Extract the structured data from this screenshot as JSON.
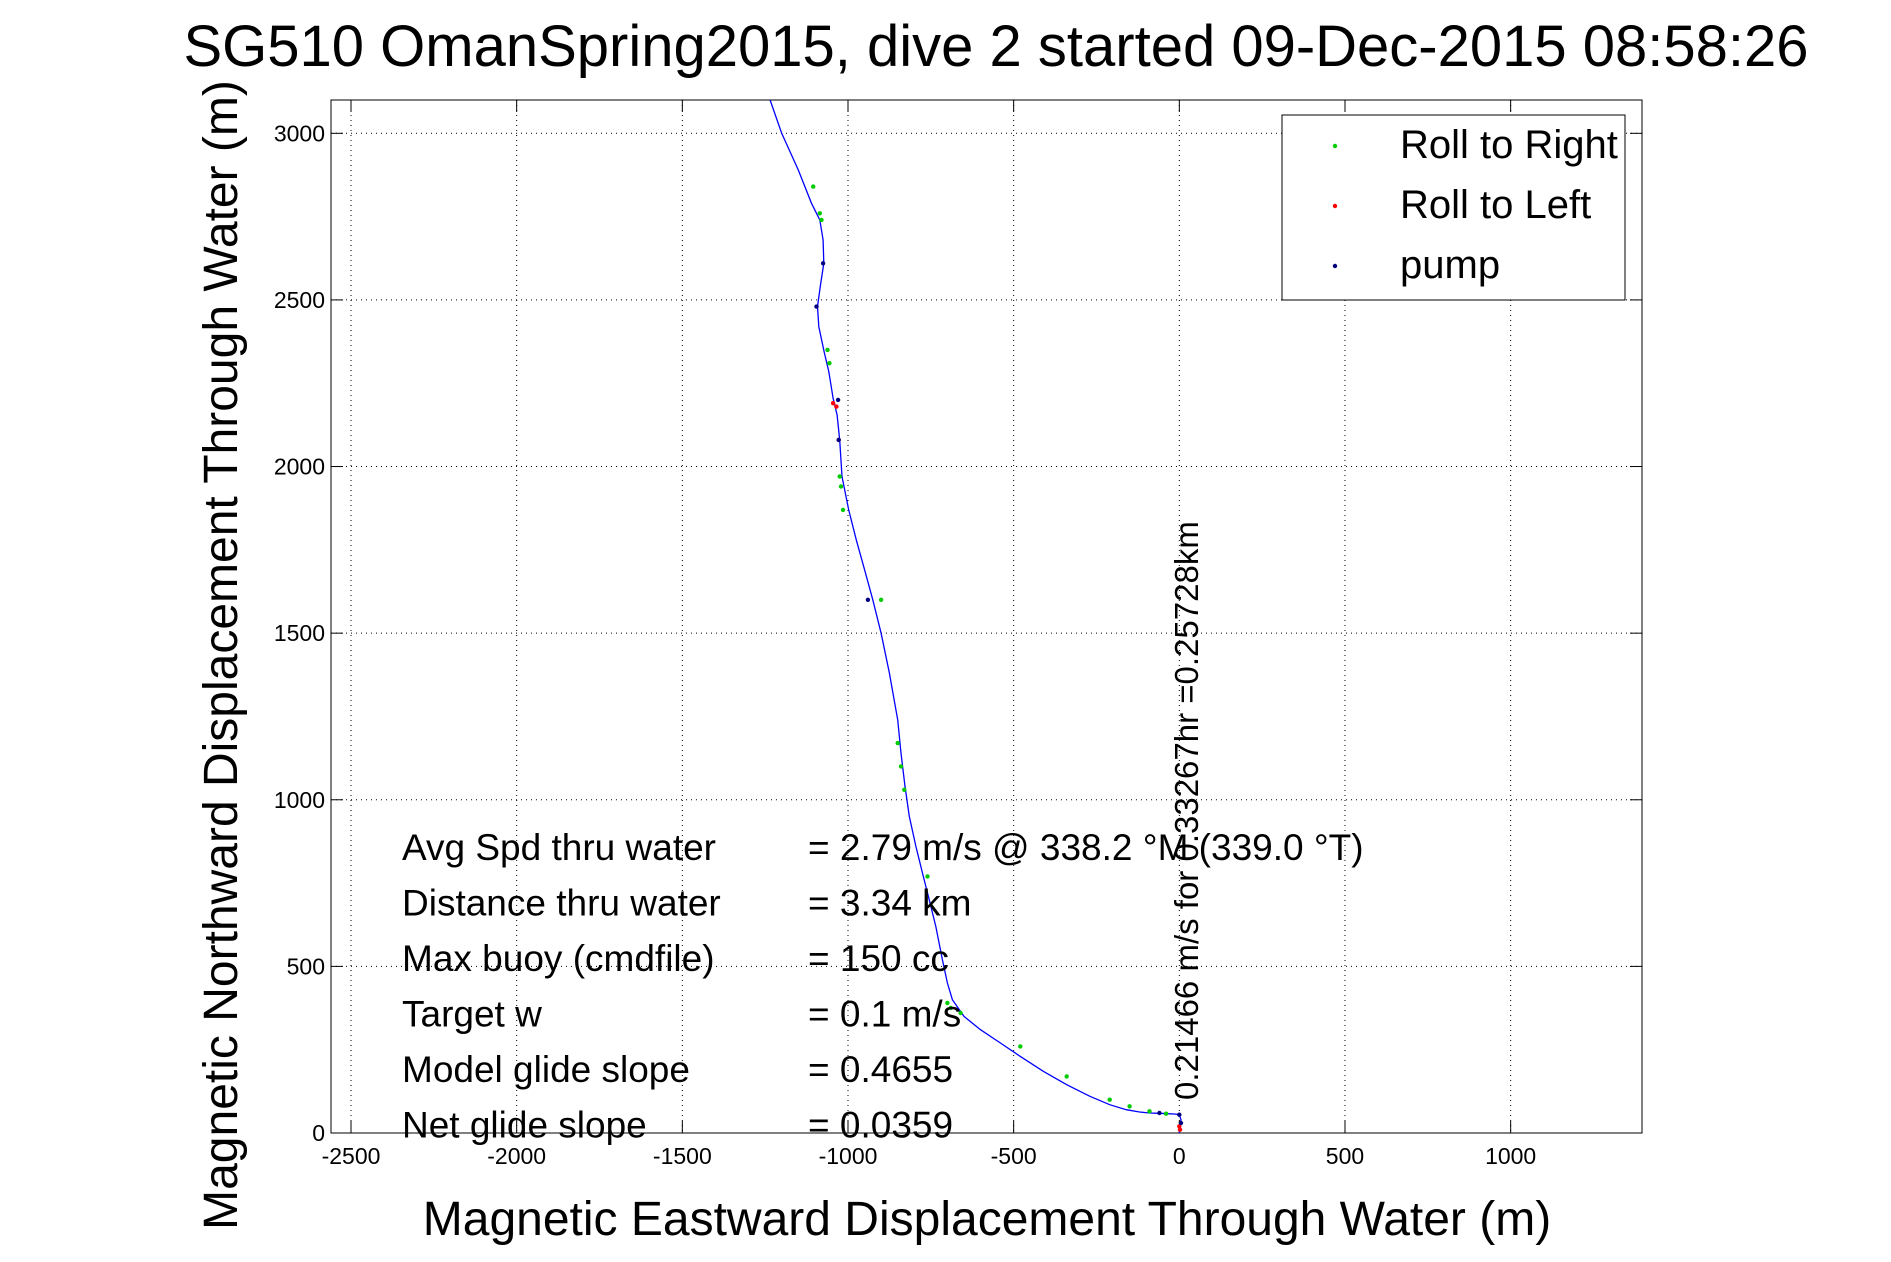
{
  "chart_data": {
    "type": "line",
    "title": "SG510 OmanSpring2015, dive 2 started 09-Dec-2015 08:58:26",
    "xlabel": "Magnetic Eastward Displacement Through Water (m)",
    "ylabel": "Magnetic Northward Displacement Through Water (m)",
    "xlim": [
      -2500,
      1250
    ],
    "ylim": [
      0,
      3100
    ],
    "xticks": [
      -2500,
      -2000,
      -1500,
      -1000,
      -500,
      0,
      500,
      1000
    ],
    "yticks": [
      0,
      500,
      1000,
      1500,
      2000,
      2500,
      3000
    ],
    "grid": true,
    "legend_position": "top-right",
    "colors": {
      "track": "#0000ff",
      "roll_right": "#00cc00",
      "roll_left": "#ff0000",
      "pump": "#000080"
    },
    "series": [
      {
        "name": "Roll to Right",
        "x": [
          -1105,
          -1085,
          -1080,
          -1062,
          -1056,
          -1025,
          -1021,
          -1015,
          -900,
          -850,
          -840,
          -830,
          -760,
          -700,
          -690,
          -660,
          -480,
          -340,
          -210,
          -150,
          -90,
          -40
        ],
        "y": [
          2840,
          2760,
          2740,
          2350,
          2310,
          1970,
          1940,
          1870,
          1600,
          1170,
          1100,
          1030,
          770,
          390,
          375,
          360,
          260,
          170,
          100,
          80,
          65,
          58
        ]
      },
      {
        "name": "Roll to Left",
        "x": [
          -1045,
          -1035,
          -1028,
          0,
          2
        ],
        "y": [
          2190,
          2180,
          2080,
          20,
          10
        ]
      },
      {
        "name": "pump",
        "x": [
          -1075,
          -1095,
          -1030,
          -1028,
          -940,
          -60,
          0,
          5
        ],
        "y": [
          2610,
          2480,
          2200,
          2080,
          1600,
          60,
          55,
          30
        ]
      },
      {
        "name": "track",
        "x": [
          -1235,
          -1200,
          -1150,
          -1110,
          -1085,
          -1075,
          -1073,
          -1083,
          -1092,
          -1088,
          -1072,
          -1058,
          -1045,
          -1033,
          -1025,
          -1018,
          -998,
          -975,
          -950,
          -925,
          -900,
          -875,
          -850,
          -840,
          -828,
          -815,
          -795,
          -775,
          -755,
          -735,
          -715,
          -700,
          -685,
          -650,
          -600,
          -540,
          -480,
          -410,
          -340,
          -270,
          -210,
          -160,
          -120,
          -90,
          -60,
          -35,
          -15,
          0,
          5,
          2,
          0
        ],
        "y": [
          3100,
          3000,
          2890,
          2790,
          2740,
          2680,
          2610,
          2545,
          2480,
          2420,
          2345,
          2285,
          2205,
          2155,
          2080,
          1970,
          1870,
          1780,
          1690,
          1600,
          1500,
          1380,
          1240,
          1140,
          1040,
          950,
          860,
          780,
          700,
          620,
          520,
          450,
          400,
          350,
          310,
          270,
          230,
          185,
          145,
          110,
          85,
          70,
          63,
          60,
          59,
          58,
          57,
          55,
          40,
          20,
          0
        ]
      }
    ],
    "stats": [
      {
        "label": "Avg Spd thru water",
        "value": "=  2.79 m/s @ 338.2 °M (339.0 °T)"
      },
      {
        "label": "Distance thru water",
        "value": "=  3.34 km"
      },
      {
        "label": "Max buoy (cmdfile)",
        "value": "= 150 cc"
      },
      {
        "label": "Target w",
        "value": "= 0.1 m/s"
      },
      {
        "label": "Model glide slope",
        "value": "= 0.4655"
      },
      {
        "label": "Net glide slope",
        "value": "= 0.0359"
      }
    ],
    "annotation": "0.21466 m/s for 0.33267hr =0.25728km"
  }
}
